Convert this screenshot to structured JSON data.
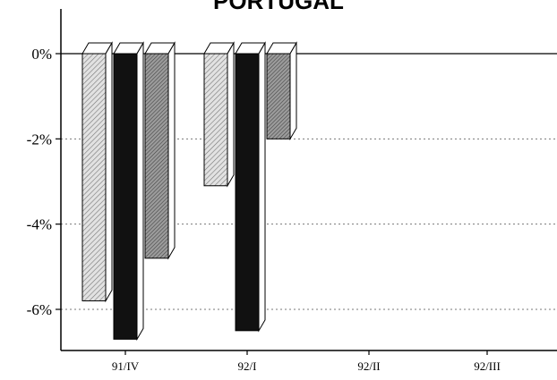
{
  "chart_data": {
    "type": "bar",
    "title": "PORTUGAL",
    "categories": [
      "91/IV",
      "92/I",
      "92/II",
      "92/III"
    ],
    "series": [
      {
        "values": [
          -5.8,
          -3.1,
          null,
          null
        ],
        "pattern": "light-hatch"
      },
      {
        "values": [
          -6.7,
          -6.5,
          null,
          null
        ],
        "pattern": "solid-black"
      },
      {
        "values": [
          -4.8,
          -2.0,
          null,
          null
        ],
        "pattern": "dark-hatch"
      }
    ],
    "ylim": [
      -7,
      0.8
    ],
    "yticks": [
      0,
      -2,
      -4,
      -6
    ],
    "ytick_labels": [
      "0%",
      "-2%",
      "-4%",
      "-6%"
    ],
    "grid": "dotted horizontal",
    "colors": {
      "light": "#c8c8c8",
      "black": "#111111",
      "dark": "#8a8a8a"
    }
  }
}
